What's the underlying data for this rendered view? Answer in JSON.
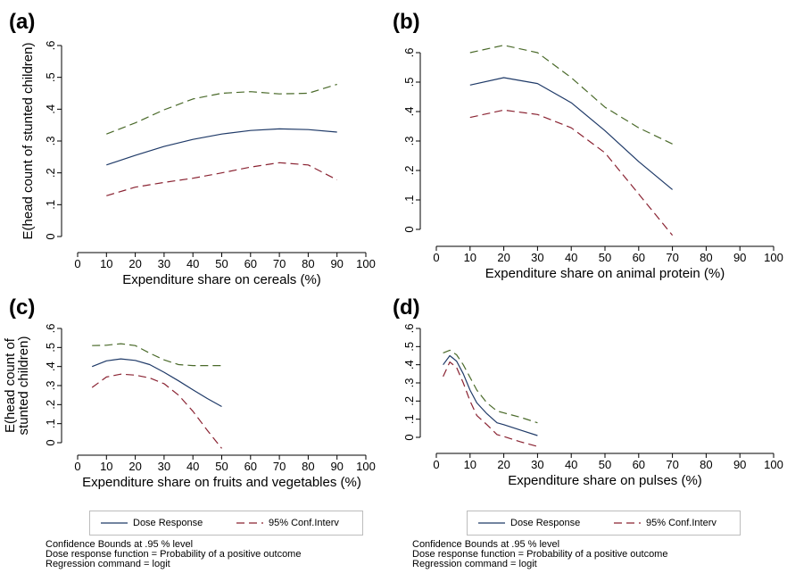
{
  "colors": {
    "dose": "#1f3a68",
    "upper": "#4a6a2a",
    "lower": "#8a2332"
  },
  "panels": [
    {
      "letter": "(a)",
      "xlabel": "Expenditure share on cereals (%)",
      "ylabel": [
        "E(head count of stunted children)"
      ]
    },
    {
      "letter": "(b)",
      "xlabel": "Expenditure share on animal protein (%)",
      "ylabel": []
    },
    {
      "letter": "(c)",
      "xlabel": "Expenditure share on fruits and vegetables (%)",
      "ylabel": [
        "E(head count of",
        "stunted children)"
      ]
    },
    {
      "letter": "(d)",
      "xlabel": "Expenditure share on pulses (%)",
      "ylabel": []
    }
  ],
  "legend": {
    "dose": "Dose Response",
    "ci": "95% Conf.Interv"
  },
  "notes": [
    "Confidence Bounds at .95 % level",
    "Dose response function = Probability of a positive outcome",
    "Regression command = logit"
  ],
  "chart_data": [
    {
      "type": "line",
      "title": "(a)",
      "xlabel": "Expenditure share on cereals (%)",
      "ylabel": "E(head count of stunted children)",
      "xlim": [
        0,
        100
      ],
      "ylim": [
        0,
        0.6
      ],
      "xticks": [
        "0",
        "10",
        "20",
        "30",
        "40",
        "50",
        "60",
        "70",
        "80",
        "90",
        "100"
      ],
      "yticks": [
        "0",
        ".1",
        ".2",
        ".3",
        ".4",
        ".5",
        ".6"
      ],
      "x": [
        10,
        20,
        30,
        40,
        50,
        60,
        70,
        80,
        90
      ],
      "series": [
        {
          "name": "Dose Response",
          "style": "solid",
          "values": [
            0.225,
            0.255,
            0.283,
            0.305,
            0.322,
            0.333,
            0.338,
            0.336,
            0.328
          ]
        },
        {
          "name": "95% Conf.Interv",
          "style": "dashed-upper",
          "values": [
            0.322,
            0.357,
            0.398,
            0.432,
            0.45,
            0.455,
            0.448,
            0.45,
            0.478
          ]
        },
        {
          "name": "95% Conf.Interv",
          "style": "dashed-lower",
          "values": [
            0.128,
            0.155,
            0.17,
            0.183,
            0.2,
            0.218,
            0.232,
            0.225,
            0.178
          ]
        }
      ]
    },
    {
      "type": "line",
      "title": "(b)",
      "xlabel": "Expenditure share on animal protein (%)",
      "ylabel": "",
      "xlim": [
        0,
        100
      ],
      "ylim": [
        0,
        0.6
      ],
      "xticks": [
        "0",
        "10",
        "20",
        "30",
        "40",
        "50",
        "60",
        "70",
        "80",
        "90",
        "100"
      ],
      "yticks": [
        "0",
        ".1",
        ".2",
        ".3",
        ".4",
        ".5",
        ".6"
      ],
      "x": [
        10,
        20,
        30,
        40,
        50,
        60,
        70
      ],
      "series": [
        {
          "name": "Dose Response",
          "style": "solid",
          "values": [
            0.49,
            0.515,
            0.495,
            0.43,
            0.335,
            0.23,
            0.135
          ]
        },
        {
          "name": "95% Conf.Interv",
          "style": "dashed-upper",
          "values": [
            0.6,
            0.625,
            0.6,
            0.515,
            0.415,
            0.345,
            0.29
          ]
        },
        {
          "name": "95% Conf.Interv",
          "style": "dashed-lower",
          "values": [
            0.38,
            0.405,
            0.39,
            0.345,
            0.26,
            0.12,
            -0.02
          ]
        }
      ]
    },
    {
      "type": "line",
      "title": "(c)",
      "xlabel": "Expenditure share on fruits and vegetables (%)",
      "ylabel": "E(head count of stunted children)",
      "xlim": [
        0,
        100
      ],
      "ylim": [
        0,
        0.6
      ],
      "xticks": [
        "0",
        "10",
        "20",
        "30",
        "40",
        "50",
        "60",
        "70",
        "80",
        "90",
        "100"
      ],
      "yticks": [
        "0",
        ".1",
        ".2",
        ".3",
        ".4",
        ".5",
        ".6"
      ],
      "x": [
        5,
        10,
        15,
        20,
        25,
        30,
        35,
        40,
        45,
        50
      ],
      "series": [
        {
          "name": "Dose Response",
          "style": "solid",
          "values": [
            0.4,
            0.43,
            0.44,
            0.432,
            0.41,
            0.37,
            0.325,
            0.278,
            0.232,
            0.19
          ]
        },
        {
          "name": "95% Conf.Interv",
          "style": "dashed-upper",
          "values": [
            0.51,
            0.512,
            0.52,
            0.51,
            0.47,
            0.435,
            0.41,
            0.405,
            0.405,
            0.405
          ]
        },
        {
          "name": "95% Conf.Interv",
          "style": "dashed-lower",
          "values": [
            0.29,
            0.345,
            0.36,
            0.355,
            0.34,
            0.31,
            0.25,
            0.165,
            0.065,
            -0.03
          ]
        }
      ]
    },
    {
      "type": "line",
      "title": "(d)",
      "xlabel": "Expenditure share on pulses (%)",
      "ylabel": "",
      "xlim": [
        0,
        100
      ],
      "ylim": [
        0,
        0.6
      ],
      "xticks": [
        "0",
        "10",
        "20",
        "30",
        "40",
        "50",
        "60",
        "70",
        "80",
        "90",
        "100"
      ],
      "yticks": [
        "0",
        ".1",
        ".2",
        ".3",
        ".4",
        ".5",
        ".6"
      ],
      "x": [
        2,
        4,
        6,
        8,
        10,
        12,
        15,
        18,
        20,
        25,
        30
      ],
      "series": [
        {
          "name": "Dose Response",
          "style": "solid",
          "values": [
            0.4,
            0.45,
            0.42,
            0.35,
            0.26,
            0.19,
            0.13,
            0.08,
            0.07,
            0.04,
            0.01
          ]
        },
        {
          "name": "95% Conf.Interv",
          "style": "dashed-upper",
          "values": [
            0.465,
            0.48,
            0.455,
            0.4,
            0.33,
            0.26,
            0.19,
            0.145,
            0.135,
            0.11,
            0.08
          ]
        },
        {
          "name": "95% Conf.Interv",
          "style": "dashed-lower",
          "values": [
            0.335,
            0.415,
            0.385,
            0.3,
            0.2,
            0.12,
            0.07,
            0.015,
            0.005,
            -0.025,
            -0.05
          ]
        }
      ]
    }
  ]
}
